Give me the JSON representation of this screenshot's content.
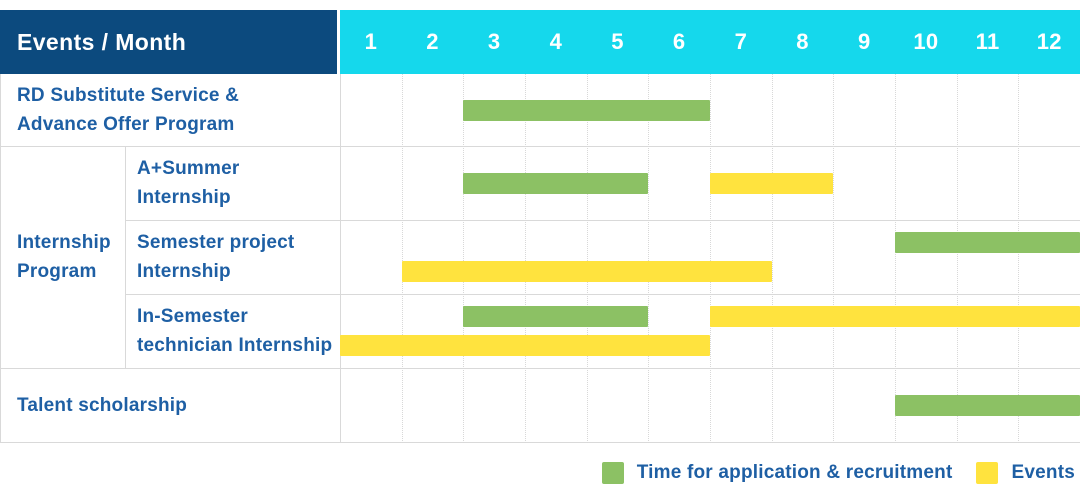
{
  "header": {
    "label": "Events / Month",
    "months": [
      "1",
      "2",
      "3",
      "4",
      "5",
      "6",
      "7",
      "8",
      "9",
      "10",
      "11",
      "12"
    ]
  },
  "rows": {
    "rd": {
      "lines": [
        "RD Substitute Service &",
        "Advance Offer Program"
      ]
    },
    "group": {
      "lines": [
        "Internship",
        "Program"
      ]
    },
    "a_summer": {
      "lines": [
        "A+Summer",
        "Internship"
      ]
    },
    "semester_project": {
      "lines": [
        "Semester project",
        "Internship"
      ]
    },
    "in_semester": {
      "lines": [
        "In-Semester",
        "technician Internship"
      ]
    },
    "talent": {
      "lines": [
        "Talent scholarship"
      ]
    }
  },
  "legend": {
    "application": {
      "label": "Time for application & recruitment",
      "color": "#8CC164"
    },
    "events": {
      "label": "Events",
      "color": "#FFE33E"
    }
  },
  "colors": {
    "header_navy": "#0C4A7E",
    "header_cyan": "#15D8EC",
    "bar_green": "#8CC164",
    "bar_yellow": "#FFE33E",
    "text_blue": "#1E5FA4",
    "border_gray": "#D9D9D9"
  },
  "chart_data": {
    "type": "bar",
    "subtype": "gantt-schedule",
    "title": "Events / Month",
    "xlabel": "Month",
    "x_ticks": [
      1,
      2,
      3,
      4,
      5,
      6,
      7,
      8,
      9,
      10,
      11,
      12
    ],
    "x_range": [
      1,
      12
    ],
    "grid": "vertical-dotted",
    "legend_position": "bottom-right",
    "series": {
      "application": {
        "label": "Time for application & recruitment",
        "color": "#8CC164"
      },
      "events": {
        "label": "Events",
        "color": "#FFE33E"
      }
    },
    "rows": [
      {
        "group": null,
        "label": "RD Substitute Service & Advance Offer Program",
        "bars": [
          {
            "series": "application",
            "start_month": 3,
            "end_month": 6,
            "lane": "center"
          }
        ]
      },
      {
        "group": "Internship Program",
        "label": "A+Summer Internship",
        "bars": [
          {
            "series": "application",
            "start_month": 3,
            "end_month": 5,
            "lane": "center"
          },
          {
            "series": "events",
            "start_month": 7,
            "end_month": 8,
            "lane": "center"
          }
        ]
      },
      {
        "group": "Internship Program",
        "label": "Semester project Internship",
        "bars": [
          {
            "series": "application",
            "start_month": 10,
            "end_month": 12,
            "lane": "top"
          },
          {
            "series": "events",
            "start_month": 2,
            "end_month": 7,
            "lane": "bottom"
          }
        ]
      },
      {
        "group": "Internship Program",
        "label": "In-Semester technician Internship",
        "bars": [
          {
            "series": "application",
            "start_month": 3,
            "end_month": 5,
            "lane": "top"
          },
          {
            "series": "events",
            "start_month": 7,
            "end_month": 12,
            "lane": "top"
          },
          {
            "series": "events",
            "start_month": 1,
            "end_month": 6,
            "lane": "bottom"
          }
        ]
      },
      {
        "group": null,
        "label": "Talent scholarship",
        "bars": [
          {
            "series": "application",
            "start_month": 10,
            "end_month": 12,
            "lane": "center"
          }
        ]
      }
    ]
  }
}
